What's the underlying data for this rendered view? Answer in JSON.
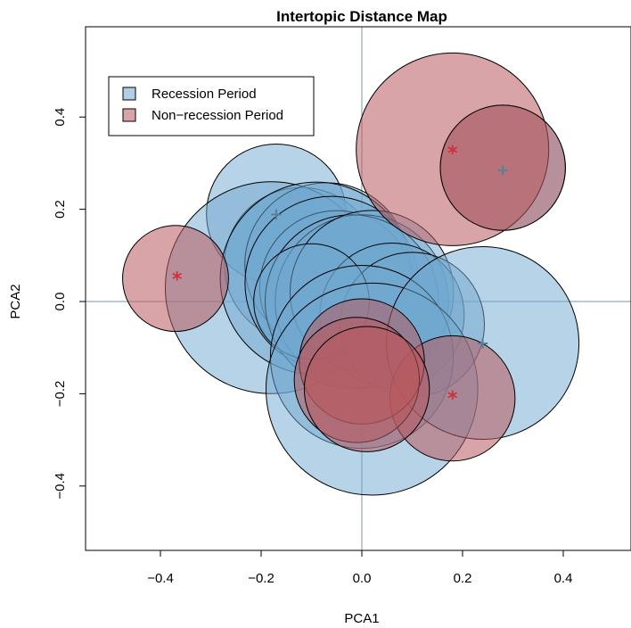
{
  "chart_data": {
    "type": "scatter",
    "title": "Intertopic Distance Map",
    "xlabel": "PCA1",
    "ylabel": "PCA2",
    "xlim": [
      -0.55,
      0.55
    ],
    "ylim": [
      -0.55,
      0.55
    ],
    "xticks": [
      -0.4,
      -0.2,
      0.0,
      0.2,
      0.4
    ],
    "yticks": [
      -0.4,
      -0.2,
      0.0,
      0.2,
      0.4
    ],
    "xtick_labels": [
      "−0.4",
      "−0.2",
      "0.0",
      "0.2",
      "0.4"
    ],
    "ytick_labels": [
      "−0.4",
      "−0.2",
      "0.0",
      "0.2",
      "0.4"
    ],
    "reference_lines": {
      "x": 0,
      "y": 0
    },
    "legend": {
      "position": "top-left",
      "entries": [
        "Recession Period",
        "Non−recession Period"
      ]
    },
    "series": [
      {
        "name": "Recession Period",
        "color": "#6fa8cf",
        "stroke": "#000000",
        "marker_color": "#5b7f99",
        "topics": [
          {
            "x": -0.17,
            "y": 0.19,
            "r": 0.145
          },
          {
            "x": -0.12,
            "y": 0.08,
            "r": 0.16
          },
          {
            "x": -0.18,
            "y": 0.03,
            "r": 0.22
          },
          {
            "x": -0.07,
            "y": 0.08,
            "r": 0.17
          },
          {
            "x": -0.09,
            "y": 0.05,
            "r": 0.2
          },
          {
            "x": -0.05,
            "y": 0.03,
            "r": 0.16
          },
          {
            "x": -0.06,
            "y": 0.04,
            "r": 0.18
          },
          {
            "x": 0.0,
            "y": 0.0,
            "r": 0.18
          },
          {
            "x": -0.02,
            "y": 0.0,
            "r": 0.18
          },
          {
            "x": 0.02,
            "y": 0.02,
            "r": 0.17
          },
          {
            "x": 0.06,
            "y": -0.03,
            "r": 0.15
          },
          {
            "x": 0.1,
            "y": -0.05,
            "r": 0.15
          },
          {
            "x": -0.1,
            "y": 0.0,
            "r": 0.12
          },
          {
            "x": 0.0,
            "y": -0.12,
            "r": 0.19
          },
          {
            "x": 0.02,
            "y": -0.19,
            "r": 0.22
          },
          {
            "x": 0.24,
            "y": -0.09,
            "r": 0.2
          },
          {
            "x": 0.28,
            "y": 0.29,
            "r": 0.13
          }
        ],
        "markers": [
          {
            "x": -0.17,
            "y": 0.19,
            "symbol": "+"
          },
          {
            "x": 0.24,
            "y": -0.09,
            "symbol": "+"
          },
          {
            "x": 0.28,
            "y": 0.285,
            "symbol": "+"
          }
        ]
      },
      {
        "name": "Non−recession Period",
        "color": "#b85a5e",
        "stroke": "#000000",
        "marker_color": "#d0303c",
        "topics": [
          {
            "x": -0.37,
            "y": 0.05,
            "r": 0.11
          },
          {
            "x": 0.18,
            "y": 0.33,
            "r": 0.2
          },
          {
            "x": 0.28,
            "y": 0.29,
            "r": 0.13
          },
          {
            "x": 0.18,
            "y": -0.21,
            "r": 0.13
          },
          {
            "x": 0.0,
            "y": -0.13,
            "r": 0.13
          },
          {
            "x": -0.01,
            "y": -0.17,
            "r": 0.13
          },
          {
            "x": 0.01,
            "y": -0.19,
            "r": 0.13
          }
        ],
        "markers": [
          {
            "x": -0.367,
            "y": 0.051,
            "symbol": "*"
          },
          {
            "x": 0.18,
            "y": 0.325,
            "symbol": "*"
          },
          {
            "x": 0.18,
            "y": -0.207,
            "symbol": "*"
          }
        ]
      }
    ]
  }
}
